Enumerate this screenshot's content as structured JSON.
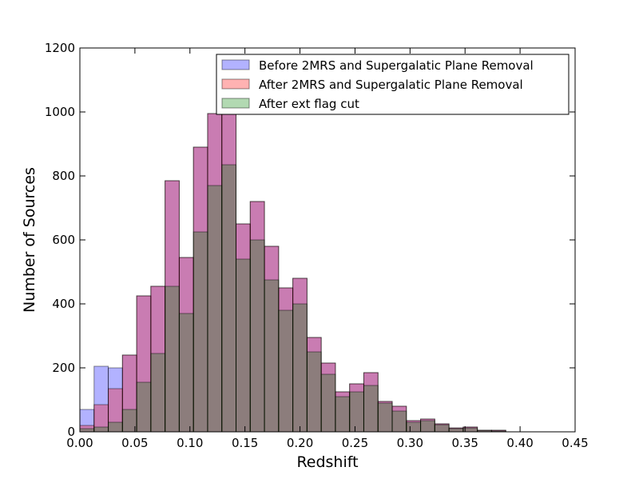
{
  "chart_data": {
    "type": "bar",
    "xlabel": "Redshift",
    "ylabel": "Number of Sources",
    "xlim": [
      0.0,
      0.45
    ],
    "ylim": [
      0,
      1200
    ],
    "x_ticks": [
      "0.00",
      "0.05",
      "0.10",
      "0.15",
      "0.20",
      "0.25",
      "0.30",
      "0.35",
      "0.40",
      "0.45"
    ],
    "y_ticks": [
      "0",
      "200",
      "400",
      "600",
      "800",
      "1000",
      "1200"
    ],
    "bin_edges": [
      0.0,
      0.0129,
      0.0258,
      0.0387,
      0.0516,
      0.0645,
      0.0774,
      0.0903,
      0.1032,
      0.1161,
      0.129,
      0.1419,
      0.1548,
      0.1677,
      0.1806,
      0.1935,
      0.2064,
      0.2193,
      0.2322,
      0.2451,
      0.258,
      0.2709,
      0.2838,
      0.2967,
      0.3096,
      0.3225,
      0.3354,
      0.3483,
      0.3612,
      0.3741,
      0.387,
      0.3999
    ],
    "legend_position": "top-right",
    "grid": false,
    "series": [
      {
        "name": "Before 2MRS and Supergalatic Plane Removal",
        "color": "#0000ff",
        "values": [
          70,
          205,
          200,
          240,
          425,
          455,
          785,
          545,
          890,
          995,
          1000,
          650,
          720,
          580,
          450,
          480,
          295,
          215,
          125,
          150,
          185,
          95,
          80,
          35,
          40,
          25,
          12,
          15,
          5,
          5,
          0
        ]
      },
      {
        "name": "After 2MRS and Supergalatic Plane Removal",
        "color": "#ff0000",
        "values": [
          20,
          85,
          135,
          240,
          425,
          455,
          785,
          545,
          890,
          995,
          1000,
          650,
          720,
          580,
          450,
          480,
          295,
          215,
          125,
          150,
          185,
          95,
          80,
          35,
          40,
          25,
          12,
          15,
          5,
          5,
          0
        ]
      },
      {
        "name": "After ext flag cut",
        "color": "#008000",
        "values": [
          10,
          15,
          30,
          70,
          155,
          245,
          455,
          370,
          625,
          770,
          835,
          540,
          600,
          475,
          380,
          400,
          250,
          180,
          110,
          125,
          145,
          90,
          65,
          30,
          35,
          22,
          10,
          12,
          4,
          3,
          0
        ]
      }
    ]
  }
}
